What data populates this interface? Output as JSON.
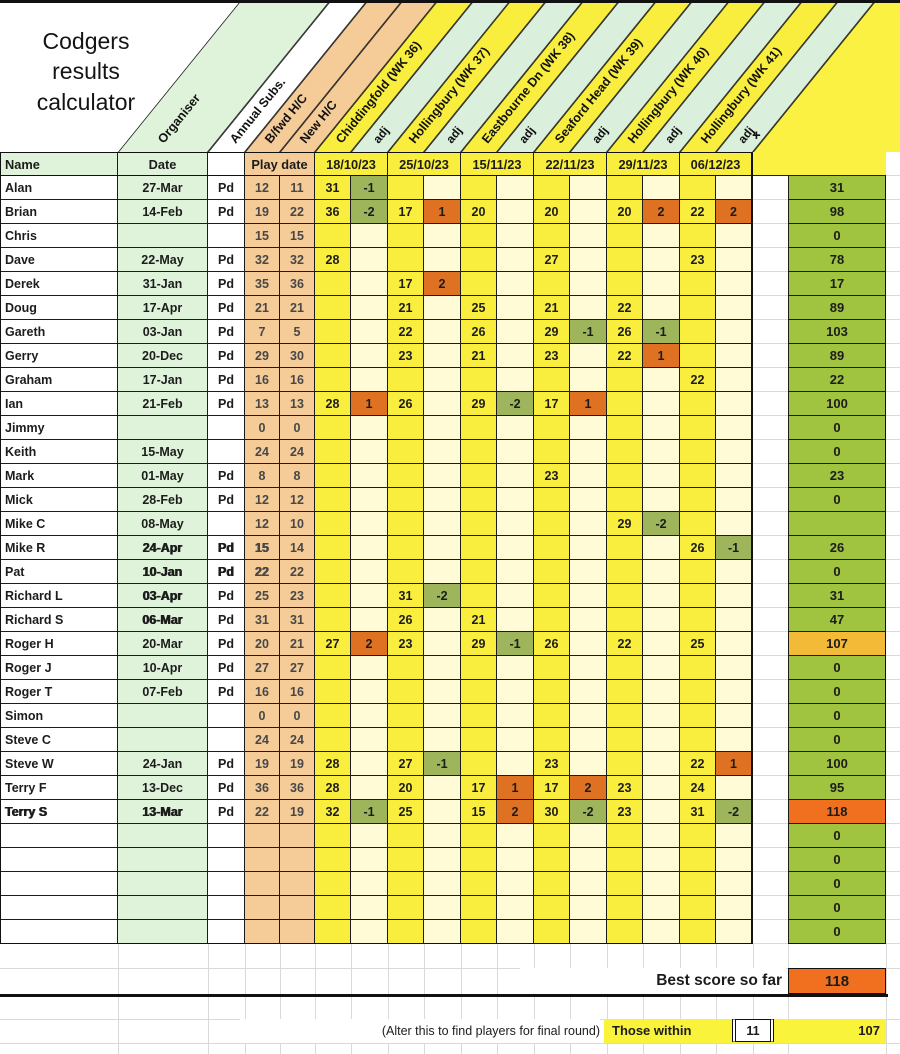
{
  "title_lines": [
    "Codgers",
    "results",
    "calculator"
  ],
  "diagonal": {
    "organiser": "Organiser",
    "annual_subs": "Annual Subs.",
    "bfwd_hc": "B/fwd H/C",
    "new_hc": "New H/C",
    "venues": [
      "Chiddingfold (WK 36)",
      "Hollingbury (WK 37)",
      "Eastbourne Dn (WK 38)",
      "Seaford Head (WK 39)",
      "Hollingbury (WK 40)",
      "Hollingbury (WK 41)"
    ],
    "adj_label": "adj",
    "plus_marker": "+"
  },
  "table": {
    "headers": {
      "name": "Name",
      "date": "Date",
      "play_date": "Play date",
      "round_dates": [
        "18/10/23",
        "25/10/23",
        "15/11/23",
        "22/11/23",
        "29/11/23",
        "06/12/23"
      ]
    },
    "players": [
      {
        "name": "Alan",
        "date": "27-Mar",
        "pd": "Pd",
        "bfwd": "12",
        "newhc": "11",
        "rounds": [
          [
            "31",
            "-1"
          ],
          [
            "",
            ""
          ],
          [
            "",
            ""
          ],
          [
            "",
            ""
          ],
          [
            "",
            ""
          ],
          [
            "",
            ""
          ]
        ],
        "total": "31",
        "total_style": "green",
        "em": []
      },
      {
        "name": "Brian",
        "date": "14-Feb",
        "pd": "Pd",
        "bfwd": "19",
        "newhc": "22",
        "rounds": [
          [
            "36",
            "-2"
          ],
          [
            "17",
            "1"
          ],
          [
            "20",
            ""
          ],
          [
            "20",
            ""
          ],
          [
            "20",
            "2"
          ],
          [
            "22",
            "2"
          ]
        ],
        "total": "98",
        "total_style": "green",
        "em": []
      },
      {
        "name": "Chris",
        "date": "",
        "pd": "",
        "bfwd": "15",
        "newhc": "15",
        "rounds": [
          [
            "",
            ""
          ],
          [
            "",
            ""
          ],
          [
            "",
            ""
          ],
          [
            "",
            ""
          ],
          [
            "",
            ""
          ],
          [
            "",
            ""
          ]
        ],
        "total": "0",
        "total_style": "green",
        "em": []
      },
      {
        "name": "Dave",
        "date": "22-May",
        "pd": "Pd",
        "bfwd": "32",
        "newhc": "32",
        "rounds": [
          [
            "28",
            ""
          ],
          [
            "",
            ""
          ],
          [
            "",
            ""
          ],
          [
            "27",
            ""
          ],
          [
            "",
            ""
          ],
          [
            "23",
            ""
          ]
        ],
        "total": "78",
        "total_style": "green",
        "em": []
      },
      {
        "name": "Derek",
        "date": "31-Jan",
        "pd": "Pd",
        "bfwd": "35",
        "newhc": "36",
        "rounds": [
          [
            "",
            ""
          ],
          [
            "17",
            "2"
          ],
          [
            "",
            ""
          ],
          [
            "",
            ""
          ],
          [
            "",
            ""
          ],
          [
            "",
            ""
          ]
        ],
        "total": "17",
        "total_style": "green",
        "em": []
      },
      {
        "name": "Doug",
        "date": "17-Apr",
        "pd": "Pd",
        "bfwd": "21",
        "newhc": "21",
        "rounds": [
          [
            "",
            ""
          ],
          [
            "21",
            ""
          ],
          [
            "25",
            ""
          ],
          [
            "21",
            ""
          ],
          [
            "22",
            ""
          ],
          [
            "",
            ""
          ]
        ],
        "total": "89",
        "total_style": "green",
        "em": []
      },
      {
        "name": "Gareth",
        "date": "03-Jan",
        "pd": "Pd",
        "bfwd": "7",
        "newhc": "5",
        "rounds": [
          [
            "",
            ""
          ],
          [
            "22",
            ""
          ],
          [
            "26",
            ""
          ],
          [
            "29",
            "-1"
          ],
          [
            "26",
            "-1"
          ],
          [
            "",
            ""
          ]
        ],
        "total": "103",
        "total_style": "green",
        "em": []
      },
      {
        "name": "Gerry",
        "date": "20-Dec",
        "pd": "Pd",
        "bfwd": "29",
        "newhc": "30",
        "rounds": [
          [
            "",
            ""
          ],
          [
            "23",
            ""
          ],
          [
            "21",
            ""
          ],
          [
            "23",
            ""
          ],
          [
            "22",
            "1"
          ],
          [
            "",
            ""
          ]
        ],
        "total": "89",
        "total_style": "green",
        "em": []
      },
      {
        "name": "Graham",
        "date": "17-Jan",
        "pd": "Pd",
        "bfwd": "16",
        "newhc": "16",
        "rounds": [
          [
            "",
            ""
          ],
          [
            "",
            ""
          ],
          [
            "",
            ""
          ],
          [
            "",
            ""
          ],
          [
            "",
            ""
          ],
          [
            "22",
            ""
          ]
        ],
        "total": "22",
        "total_style": "green",
        "em": []
      },
      {
        "name": "Ian",
        "date": "21-Feb",
        "pd": "Pd",
        "bfwd": "13",
        "newhc": "13",
        "rounds": [
          [
            "28",
            "1"
          ],
          [
            "26",
            ""
          ],
          [
            "29",
            "-2"
          ],
          [
            "17",
            "1"
          ],
          [
            "",
            ""
          ],
          [
            "",
            ""
          ]
        ],
        "total": "100",
        "total_style": "green",
        "em": []
      },
      {
        "name": "Jimmy",
        "date": "",
        "pd": "",
        "bfwd": "0",
        "newhc": "0",
        "rounds": [
          [
            "",
            ""
          ],
          [
            "",
            ""
          ],
          [
            "",
            ""
          ],
          [
            "",
            ""
          ],
          [
            "",
            ""
          ],
          [
            "",
            ""
          ]
        ],
        "total": "0",
        "total_style": "green",
        "em": []
      },
      {
        "name": "Keith",
        "date": "15-May",
        "pd": "",
        "bfwd": "24",
        "newhc": "24",
        "rounds": [
          [
            "",
            ""
          ],
          [
            "",
            ""
          ],
          [
            "",
            ""
          ],
          [
            "",
            ""
          ],
          [
            "",
            ""
          ],
          [
            "",
            ""
          ]
        ],
        "total": "0",
        "total_style": "green",
        "em": []
      },
      {
        "name": "Mark",
        "date": "01-May",
        "pd": "Pd",
        "bfwd": "8",
        "newhc": "8",
        "rounds": [
          [
            "",
            ""
          ],
          [
            "",
            ""
          ],
          [
            "",
            ""
          ],
          [
            "23",
            ""
          ],
          [
            "",
            ""
          ],
          [
            "",
            ""
          ]
        ],
        "total": "23",
        "total_style": "green",
        "em": []
      },
      {
        "name": "Mick",
        "date": "28-Feb",
        "pd": "Pd",
        "bfwd": "12",
        "newhc": "12",
        "rounds": [
          [
            "",
            ""
          ],
          [
            "",
            ""
          ],
          [
            "",
            ""
          ],
          [
            "",
            ""
          ],
          [
            "",
            ""
          ],
          [
            "",
            ""
          ]
        ],
        "total": "0",
        "total_style": "green",
        "em": []
      },
      {
        "name": "Mike C",
        "date": "08-May",
        "pd": "",
        "bfwd": "12",
        "newhc": "10",
        "rounds": [
          [
            "",
            ""
          ],
          [
            "",
            ""
          ],
          [
            "",
            ""
          ],
          [
            "",
            ""
          ],
          [
            "29",
            "-2"
          ],
          [
            "",
            ""
          ]
        ],
        "total": "",
        "total_style": "green",
        "em": []
      },
      {
        "name": "Mike R",
        "date": "24-Apr",
        "pd": "Pd",
        "bfwd": "15",
        "newhc": "14",
        "rounds": [
          [
            "",
            ""
          ],
          [
            "",
            ""
          ],
          [
            "",
            ""
          ],
          [
            "",
            ""
          ],
          [
            "",
            ""
          ],
          [
            "26",
            "-1"
          ]
        ],
        "total": "26",
        "total_style": "green",
        "em": [
          "date",
          "pd",
          "bfwd"
        ]
      },
      {
        "name": "Pat",
        "date": "10-Jan",
        "pd": "Pd",
        "bfwd": "22",
        "newhc": "22",
        "rounds": [
          [
            "",
            ""
          ],
          [
            "",
            ""
          ],
          [
            "",
            ""
          ],
          [
            "",
            ""
          ],
          [
            "",
            ""
          ],
          [
            "",
            ""
          ]
        ],
        "total": "0",
        "total_style": "green",
        "em": [
          "date",
          "pd",
          "bfwd"
        ]
      },
      {
        "name": "Richard L",
        "date": "03-Apr",
        "pd": "Pd",
        "bfwd": "25",
        "newhc": "23",
        "rounds": [
          [
            "",
            ""
          ],
          [
            "31",
            "-2"
          ],
          [
            "",
            ""
          ],
          [
            "",
            ""
          ],
          [
            "",
            ""
          ],
          [
            "",
            ""
          ]
        ],
        "total": "31",
        "total_style": "green",
        "em": [
          "date"
        ]
      },
      {
        "name": "Richard S",
        "date": "06-Mar",
        "pd": "Pd",
        "bfwd": "31",
        "newhc": "31",
        "rounds": [
          [
            "",
            ""
          ],
          [
            "26",
            ""
          ],
          [
            "21",
            ""
          ],
          [
            "",
            ""
          ],
          [
            "",
            ""
          ],
          [
            "",
            ""
          ]
        ],
        "total": "47",
        "total_style": "green",
        "em": [
          "date"
        ]
      },
      {
        "name": "Roger H",
        "date": "20-Mar",
        "pd": "Pd",
        "bfwd": "20",
        "newhc": "21",
        "rounds": [
          [
            "27",
            "2"
          ],
          [
            "23",
            ""
          ],
          [
            "29",
            "-1"
          ],
          [
            "26",
            ""
          ],
          [
            "22",
            ""
          ],
          [
            "25",
            ""
          ]
        ],
        "total": "107",
        "total_style": "amber",
        "em": []
      },
      {
        "name": "Roger J",
        "date": "10-Apr",
        "pd": "Pd",
        "bfwd": "27",
        "newhc": "27",
        "rounds": [
          [
            "",
            ""
          ],
          [
            "",
            ""
          ],
          [
            "",
            ""
          ],
          [
            "",
            ""
          ],
          [
            "",
            ""
          ],
          [
            "",
            ""
          ]
        ],
        "total": "0",
        "total_style": "green",
        "em": []
      },
      {
        "name": "Roger T",
        "date": "07-Feb",
        "pd": "Pd",
        "bfwd": "16",
        "newhc": "16",
        "rounds": [
          [
            "",
            ""
          ],
          [
            "",
            ""
          ],
          [
            "",
            ""
          ],
          [
            "",
            ""
          ],
          [
            "",
            ""
          ],
          [
            "",
            ""
          ]
        ],
        "total": "0",
        "total_style": "green",
        "em": []
      },
      {
        "name": "Simon",
        "date": "",
        "pd": "",
        "bfwd": "0",
        "newhc": "0",
        "rounds": [
          [
            "",
            ""
          ],
          [
            "",
            ""
          ],
          [
            "",
            ""
          ],
          [
            "",
            ""
          ],
          [
            "",
            ""
          ],
          [
            "",
            ""
          ]
        ],
        "total": "0",
        "total_style": "green",
        "em": []
      },
      {
        "name": "Steve C",
        "date": "",
        "pd": "",
        "bfwd": "24",
        "newhc": "24",
        "rounds": [
          [
            "",
            ""
          ],
          [
            "",
            ""
          ],
          [
            "",
            ""
          ],
          [
            "",
            ""
          ],
          [
            "",
            ""
          ],
          [
            "",
            ""
          ]
        ],
        "total": "0",
        "total_style": "green",
        "em": []
      },
      {
        "name": "Steve W",
        "date": "24-Jan",
        "pd": "Pd",
        "bfwd": "19",
        "newhc": "19",
        "rounds": [
          [
            "28",
            ""
          ],
          [
            "27",
            "-1"
          ],
          [
            "",
            ""
          ],
          [
            "23",
            ""
          ],
          [
            "",
            ""
          ],
          [
            "22",
            "1"
          ]
        ],
        "total": "100",
        "total_style": "green",
        "em": []
      },
      {
        "name": "Terry F",
        "date": "13-Dec",
        "pd": "Pd",
        "bfwd": "36",
        "newhc": "36",
        "rounds": [
          [
            "28",
            ""
          ],
          [
            "20",
            ""
          ],
          [
            "17",
            "1"
          ],
          [
            "17",
            "2"
          ],
          [
            "23",
            ""
          ],
          [
            "24",
            ""
          ]
        ],
        "total": "95",
        "total_style": "green",
        "em": []
      },
      {
        "name": "Terry S",
        "date": "13-Mar",
        "pd": "Pd",
        "bfwd": "22",
        "newhc": "19",
        "rounds": [
          [
            "32",
            "-1"
          ],
          [
            "25",
            ""
          ],
          [
            "15",
            "2"
          ],
          [
            "30",
            "-2"
          ],
          [
            "23",
            ""
          ],
          [
            "31",
            "-2"
          ]
        ],
        "total": "118",
        "total_style": "orange",
        "em": [
          "name",
          "date"
        ]
      }
    ],
    "empty_row_totals": [
      "0",
      "0",
      "0",
      "0",
      "0"
    ]
  },
  "footer": {
    "best_label": "Best score so far",
    "best_value": "118",
    "alter_note": "(Alter this to find players for final round)",
    "those_within_label": "Those within",
    "within_value": "11",
    "within_score": "107"
  },
  "colors": {
    "score_yellow": "#F9EE3E",
    "adj_cream": "#FEFBD6",
    "adj_negative_olive": "#9EB55C",
    "adj_positive_orange": "#DE7222",
    "total_green": "#A1C440",
    "total_amber": "#F3BA38",
    "highlight_orange": "#F0701F",
    "playdate_tan": "#F5CB97",
    "cell_light_green": "#DFF3DA",
    "band_pale_green": "#DAEFDC",
    "block_yellow": "#FBF143",
    "within_strip_yellow": "#FAF33C"
  }
}
